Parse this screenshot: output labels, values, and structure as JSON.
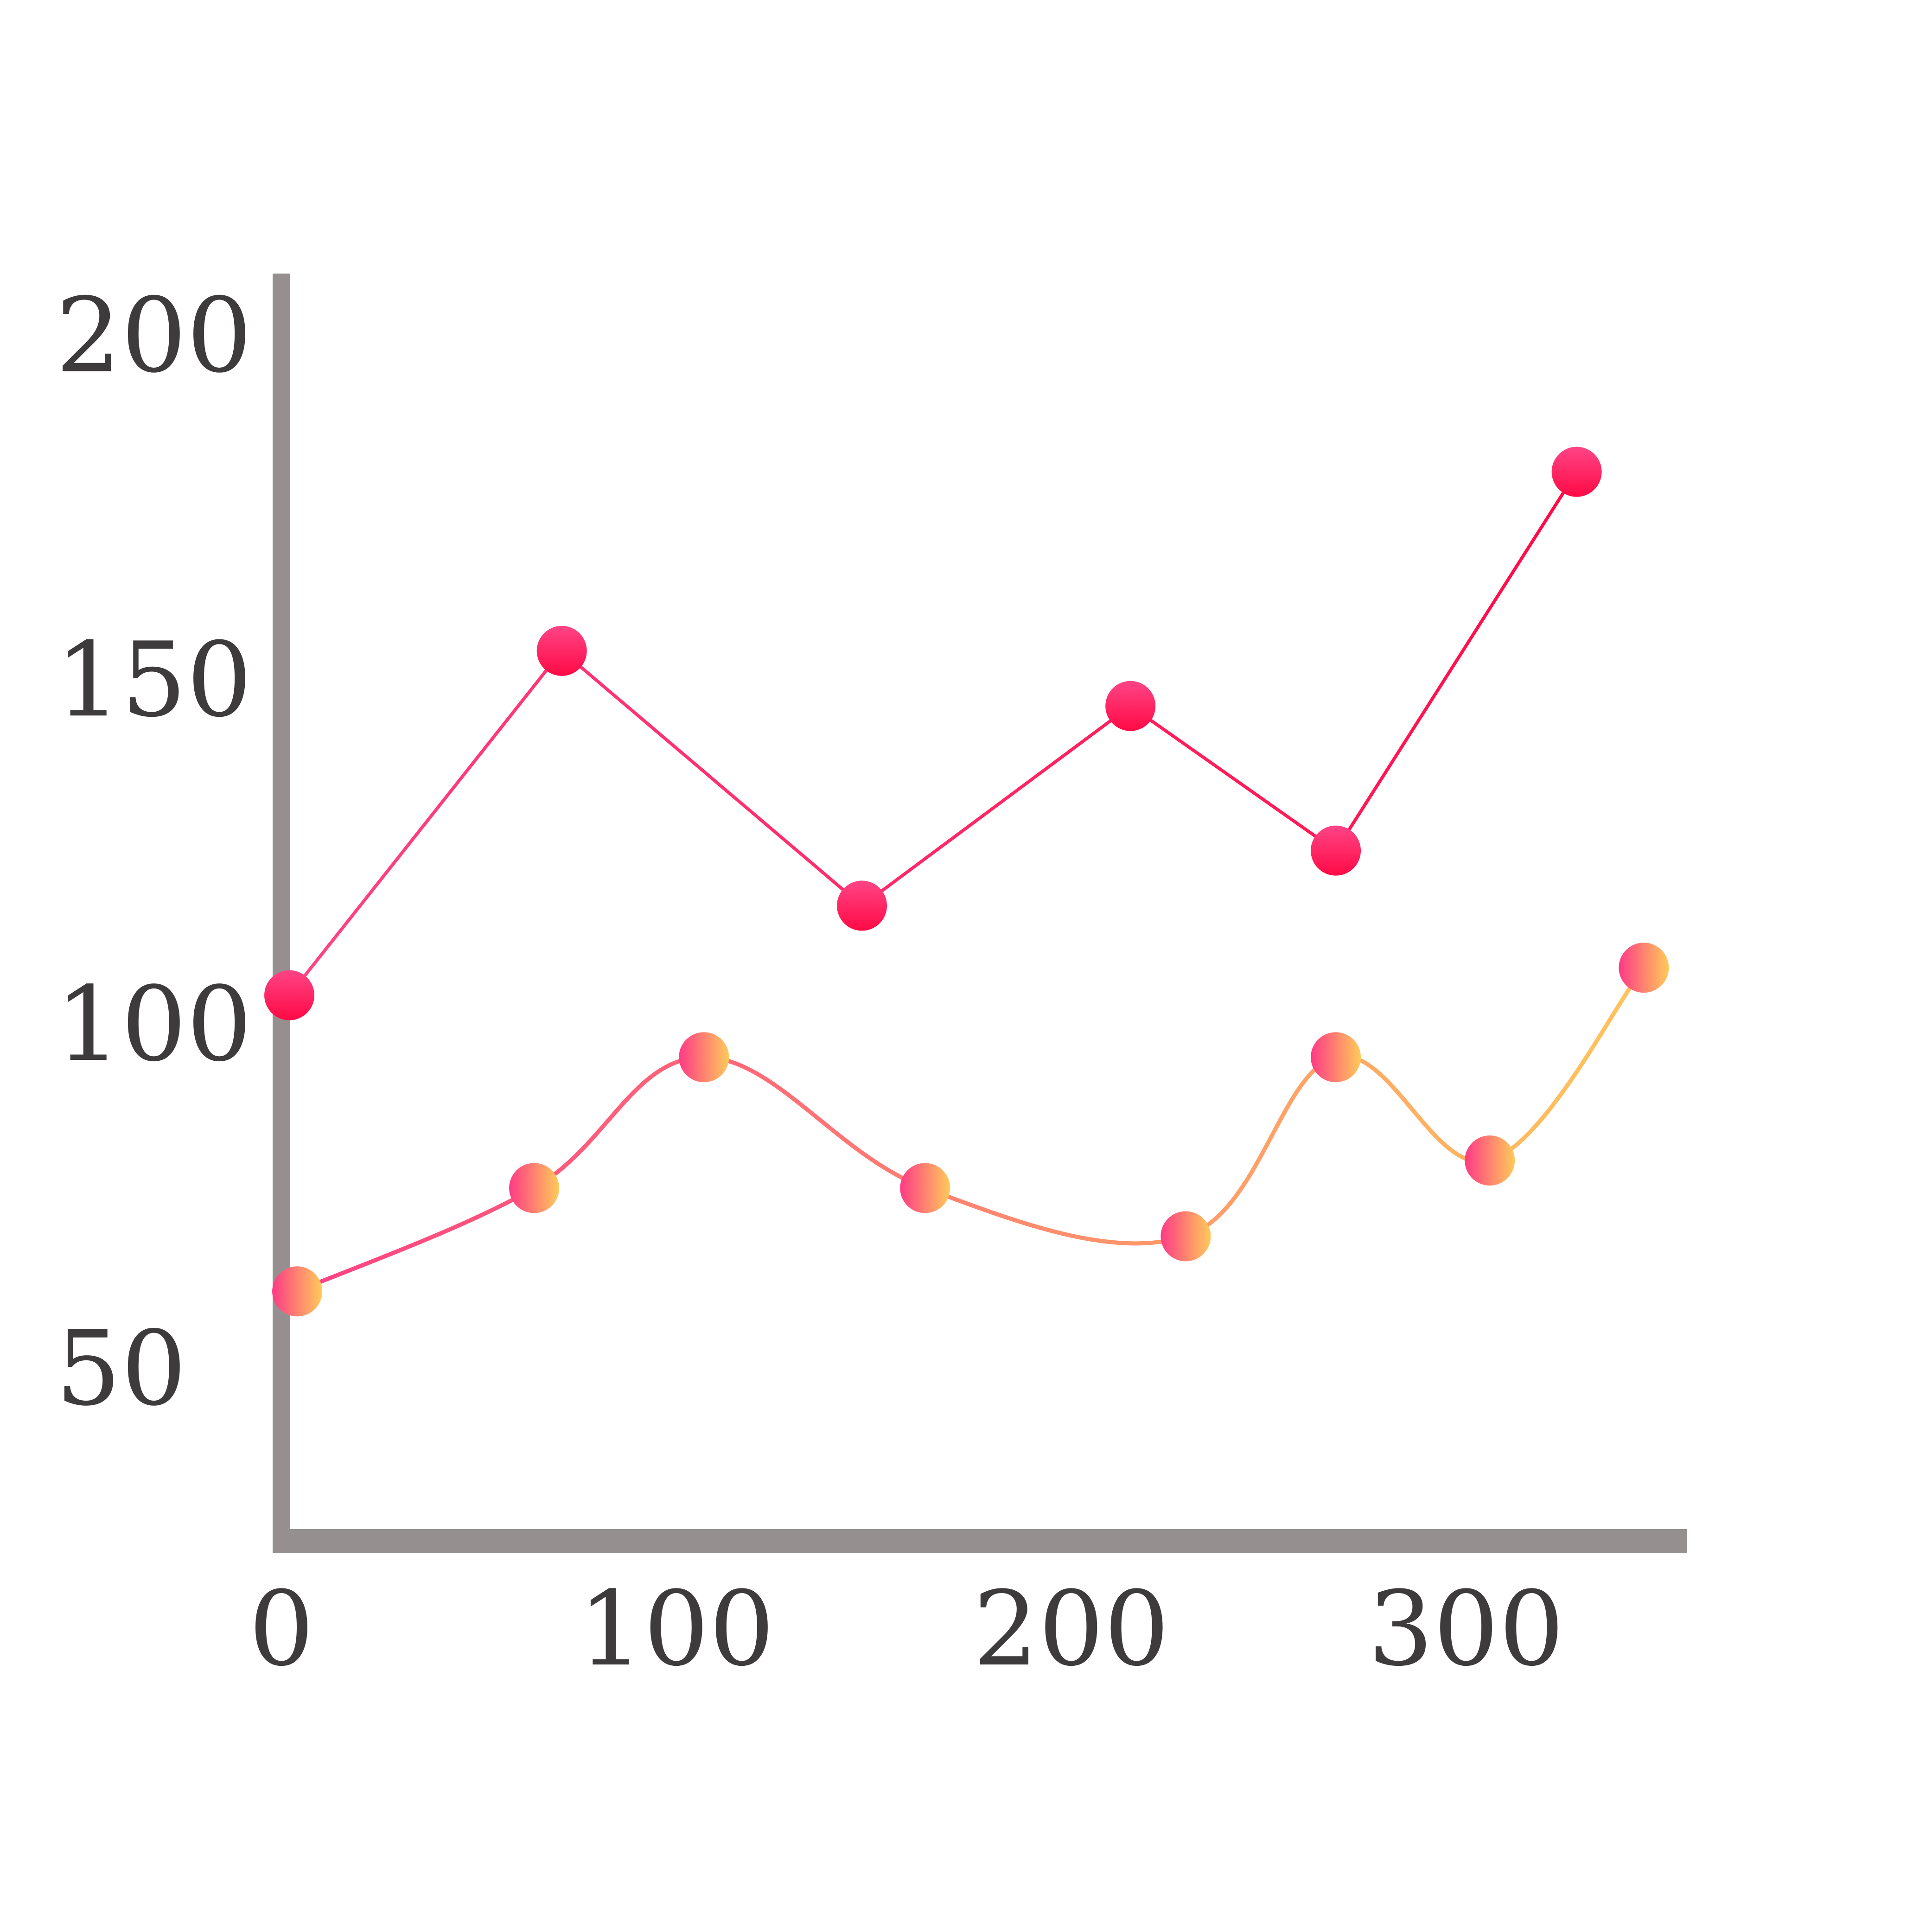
{
  "chart_data": {
    "type": "line",
    "title": "",
    "xlabel": "",
    "ylabel": "",
    "xlim": [
      0,
      350
    ],
    "ylim": [
      25,
      210
    ],
    "x_ticks": [
      0,
      100,
      200,
      300
    ],
    "y_ticks": [
      50,
      100,
      150,
      200
    ],
    "grid": false,
    "legend": "none",
    "axis_color": "#958f8f",
    "tick_label_color": "#3d3b3c",
    "series": [
      {
        "points": [
          {
            "x": 2,
            "y": 104
          },
          {
            "x": 71,
            "y": 154
          },
          {
            "x": 147,
            "y": 117
          },
          {
            "x": 215,
            "y": 146
          },
          {
            "x": 267,
            "y": 125
          },
          {
            "x": 328,
            "y": 180
          }
        ],
        "color_start": "#ff4486",
        "color_end": "#ff0a45",
        "style": "straight"
      },
      {
        "points": [
          {
            "x": 4,
            "y": 61
          },
          {
            "x": 64,
            "y": 76
          },
          {
            "x": 107,
            "y": 95
          },
          {
            "x": 163,
            "y": 76
          },
          {
            "x": 229,
            "y": 69
          },
          {
            "x": 267,
            "y": 95
          },
          {
            "x": 306,
            "y": 80
          },
          {
            "x": 345,
            "y": 108
          }
        ],
        "color_start": "#ff3a86",
        "color_end": "#ffcb5a",
        "style": "smooth"
      }
    ]
  }
}
